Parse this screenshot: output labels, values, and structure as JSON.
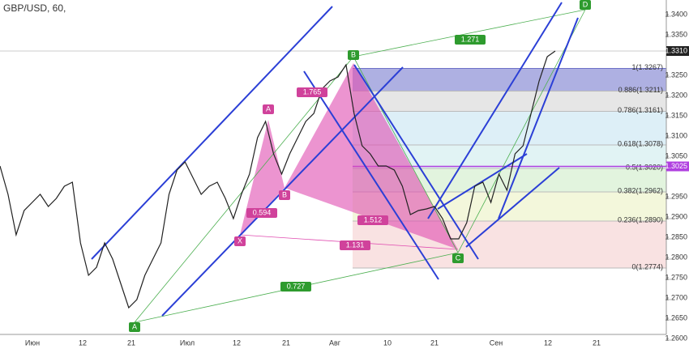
{
  "chart_data": {
    "type": "line",
    "title": "GBP/USD, 60,",
    "series": [
      {
        "name": "GBP/USD",
        "color": "#222222",
        "values": [
          1.3026,
          1.2956,
          1.2856,
          1.2916,
          1.2936,
          1.2956,
          1.2926,
          1.2946,
          1.2976,
          1.2986,
          1.2836,
          1.2756,
          1.2776,
          1.2836,
          1.2796,
          1.2736,
          1.2676,
          1.2696,
          1.2756,
          1.2796,
          1.2836,
          1.2956,
          1.3016,
          1.3036,
          1.2996,
          1.2956,
          1.2976,
          1.2986,
          1.2946,
          1.2896,
          1.2956,
          1.3006,
          1.3096,
          1.3136,
          1.3056,
          1.3006,
          1.3056,
          1.3096,
          1.3136,
          1.3156,
          1.3216,
          1.3236,
          1.3246,
          1.3276,
          1.3156,
          1.3076,
          1.3056,
          1.3026,
          1.3026,
          1.3016,
          1.2976,
          1.2906,
          1.2916,
          1.292,
          1.2926,
          1.2896,
          1.2846,
          1.2846,
          1.2886,
          1.2976,
          1.2986,
          1.2936,
          1.3006,
          1.2966,
          1.3056,
          1.3076,
          1.3156,
          1.3236,
          1.3296,
          1.331
        ]
      }
    ],
    "ylim": [
      1.2596,
      1.3436
    ],
    "yticks": [
      {
        "value": 1.26,
        "label": "1.2600"
      },
      {
        "value": 1.265,
        "label": "1.2650"
      },
      {
        "value": 1.27,
        "label": "1.2700"
      },
      {
        "value": 1.275,
        "label": "1.2750"
      },
      {
        "value": 1.28,
        "label": "1.2800"
      },
      {
        "value": 1.285,
        "label": "1.2850"
      },
      {
        "value": 1.29,
        "label": "1.2900"
      },
      {
        "value": 1.295,
        "label": "1.2950"
      },
      {
        "value": 1.305,
        "label": "1.3050"
      },
      {
        "value": 1.31,
        "label": "1.3100"
      },
      {
        "value": 1.315,
        "label": "1.3150"
      },
      {
        "value": 1.32,
        "label": "1.3200"
      },
      {
        "value": 1.325,
        "label": "1.3250"
      },
      {
        "value": 1.335,
        "label": "1.3350"
      },
      {
        "value": 1.34,
        "label": "1.3400"
      }
    ],
    "x_labels": [
      "Июн",
      "12",
      "21",
      "Июл",
      "12",
      "21",
      "Авг",
      "10",
      "21",
      "Сен",
      "12",
      "21"
    ],
    "last_price": {
      "value": 1.331,
      "label": "1.3310"
    },
    "level_price": {
      "value": 1.3025,
      "label": "1.3025"
    },
    "fib_levels": [
      {
        "label": "1(1.3267)",
        "price": 1.3267,
        "color": "#8c8fd6"
      },
      {
        "label": "0.886(1.3211)",
        "price": 1.3211,
        "color": "#dcdcdc"
      },
      {
        "label": "0.786(1.3161)",
        "price": 1.3161,
        "color": "#cfe8f3"
      },
      {
        "label": "0.618(1.3078)",
        "price": 1.3078,
        "color": "#d4eef0"
      },
      {
        "label": "0.5(1.3020)",
        "price": 1.302,
        "color": "#d6f0d0"
      },
      {
        "label": "0.382(1.2962)",
        "price": 1.2962,
        "color": "#eef3cc"
      },
      {
        "label": "0.236(1.2890)",
        "price": 1.289,
        "color": "#f7d6d6"
      },
      {
        "label": "0(1.2774)",
        "price": 1.2774,
        "color": "#f7d6d6"
      }
    ],
    "pink_points": [
      "X",
      "A",
      "B"
    ],
    "green_points": [
      "A",
      "B",
      "C",
      "D"
    ],
    "pink_ratios": [
      "1.765",
      "0.594",
      "1.512",
      "1.131"
    ],
    "green_ratios": [
      "1.271",
      "0.727"
    ]
  }
}
